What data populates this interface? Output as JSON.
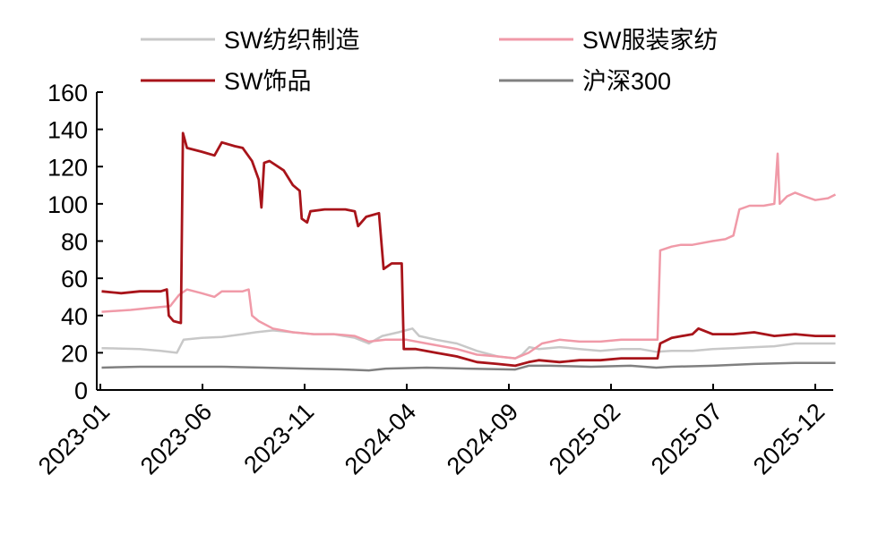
{
  "chart_data": {
    "type": "line",
    "title": "",
    "xlabel": "",
    "ylabel": "",
    "ylim": [
      0,
      160
    ],
    "yticks": [
      0,
      20,
      40,
      60,
      80,
      100,
      120,
      140,
      160
    ],
    "xlim": [
      "2023-01",
      "2025-12"
    ],
    "xticks": [
      "2023-01",
      "2023-06",
      "2023-11",
      "2024-04",
      "2024-09",
      "2025-02",
      "2025-07",
      "2025-12"
    ],
    "grid": false,
    "legend_position": "top",
    "series": [
      {
        "name": "SW纺织制造",
        "color": "#c8c8c8",
        "points": [
          [
            "2023-01-03",
            22.5
          ],
          [
            "2023-03-01",
            22
          ],
          [
            "2023-04-01",
            21
          ],
          [
            "2023-04-25",
            20
          ],
          [
            "2023-05-05",
            27
          ],
          [
            "2023-06-01",
            28
          ],
          [
            "2023-07-01",
            28.5
          ],
          [
            "2023-08-01",
            30
          ],
          [
            "2023-08-20",
            31
          ],
          [
            "2023-09-15",
            32
          ],
          [
            "2023-10-15",
            31
          ],
          [
            "2023-11-15",
            30
          ],
          [
            "2023-12-15",
            30
          ],
          [
            "2024-01-15",
            28
          ],
          [
            "2024-02-05",
            25
          ],
          [
            "2024-02-25",
            29
          ],
          [
            "2024-03-20",
            31
          ],
          [
            "2024-04-10",
            33
          ],
          [
            "2024-04-20",
            29
          ],
          [
            "2024-05-15",
            27
          ],
          [
            "2024-06-15",
            25
          ],
          [
            "2024-07-15",
            21
          ],
          [
            "2024-08-15",
            18
          ],
          [
            "2024-09-10",
            17
          ],
          [
            "2024-09-20",
            19
          ],
          [
            "2024-10-01",
            23
          ],
          [
            "2024-10-15",
            22
          ],
          [
            "2024-11-15",
            23
          ],
          [
            "2024-12-15",
            22
          ],
          [
            "2025-01-15",
            21
          ],
          [
            "2025-02-15",
            22
          ],
          [
            "2025-03-15",
            22
          ],
          [
            "2025-04-08",
            20.5
          ],
          [
            "2025-05-01",
            21
          ],
          [
            "2025-06-01",
            21
          ],
          [
            "2025-07-01",
            22
          ],
          [
            "2025-08-01",
            22.5
          ],
          [
            "2025-09-01",
            23
          ],
          [
            "2025-10-01",
            23.5
          ],
          [
            "2025-11-01",
            25
          ],
          [
            "2025-12-01",
            25
          ],
          [
            "2025-12-31",
            25
          ]
        ]
      },
      {
        "name": "SW服装家纺",
        "color": "#f09aa8",
        "points": [
          [
            "2023-01-03",
            42
          ],
          [
            "2023-02-15",
            43
          ],
          [
            "2023-03-15",
            44
          ],
          [
            "2023-04-15",
            45
          ],
          [
            "2023-04-28",
            51
          ],
          [
            "2023-05-10",
            54
          ],
          [
            "2023-06-01",
            52
          ],
          [
            "2023-06-20",
            50
          ],
          [
            "2023-07-01",
            53
          ],
          [
            "2023-08-01",
            53
          ],
          [
            "2023-08-10",
            54
          ],
          [
            "2023-08-15",
            40
          ],
          [
            "2023-08-25",
            37
          ],
          [
            "2023-09-15",
            33
          ],
          [
            "2023-10-15",
            31
          ],
          [
            "2023-11-15",
            30
          ],
          [
            "2023-12-15",
            30
          ],
          [
            "2024-01-15",
            29
          ],
          [
            "2024-02-05",
            26
          ],
          [
            "2024-03-01",
            27
          ],
          [
            "2024-04-01",
            27
          ],
          [
            "2024-05-01",
            25
          ],
          [
            "2024-06-15",
            22
          ],
          [
            "2024-07-15",
            19
          ],
          [
            "2024-08-15",
            18
          ],
          [
            "2024-09-10",
            17
          ],
          [
            "2024-09-30",
            20
          ],
          [
            "2024-10-20",
            25
          ],
          [
            "2024-11-15",
            27
          ],
          [
            "2024-12-15",
            26
          ],
          [
            "2025-01-15",
            26
          ],
          [
            "2025-02-15",
            27
          ],
          [
            "2025-03-15",
            27
          ],
          [
            "2025-04-10",
            27
          ],
          [
            "2025-04-14",
            75
          ],
          [
            "2025-05-01",
            77
          ],
          [
            "2025-05-15",
            78
          ],
          [
            "2025-06-01",
            78
          ],
          [
            "2025-07-01",
            80
          ],
          [
            "2025-07-20",
            81
          ],
          [
            "2025-08-01",
            83
          ],
          [
            "2025-08-10",
            97
          ],
          [
            "2025-08-25",
            99
          ],
          [
            "2025-09-15",
            99
          ],
          [
            "2025-10-01",
            100
          ],
          [
            "2025-10-06",
            127
          ],
          [
            "2025-10-09",
            100
          ],
          [
            "2025-10-20",
            104
          ],
          [
            "2025-11-01",
            106
          ],
          [
            "2025-11-15",
            104
          ],
          [
            "2025-12-01",
            102
          ],
          [
            "2025-12-20",
            103
          ],
          [
            "2025-12-31",
            105
          ]
        ]
      },
      {
        "name": "SW饰品",
        "color": "#a8141a",
        "points": [
          [
            "2023-01-03",
            53
          ],
          [
            "2023-02-01",
            52
          ],
          [
            "2023-03-01",
            53
          ],
          [
            "2023-04-01",
            53
          ],
          [
            "2023-04-10",
            54
          ],
          [
            "2023-04-13",
            40
          ],
          [
            "2023-04-20",
            37
          ],
          [
            "2023-05-01",
            36
          ],
          [
            "2023-05-04",
            138
          ],
          [
            "2023-05-10",
            130
          ],
          [
            "2023-06-01",
            128
          ],
          [
            "2023-06-20",
            126
          ],
          [
            "2023-07-01",
            133
          ],
          [
            "2023-07-20",
            131
          ],
          [
            "2023-08-01",
            130
          ],
          [
            "2023-08-15",
            123
          ],
          [
            "2023-08-25",
            113
          ],
          [
            "2023-08-29",
            98
          ],
          [
            "2023-09-02",
            122
          ],
          [
            "2023-09-10",
            123
          ],
          [
            "2023-10-01",
            118
          ],
          [
            "2023-10-15",
            110
          ],
          [
            "2023-10-25",
            107
          ],
          [
            "2023-10-28",
            92
          ],
          [
            "2023-11-05",
            90
          ],
          [
            "2023-11-10",
            96
          ],
          [
            "2023-12-01",
            97
          ],
          [
            "2024-01-01",
            97
          ],
          [
            "2024-01-15",
            96
          ],
          [
            "2024-01-20",
            88
          ],
          [
            "2024-02-01",
            93
          ],
          [
            "2024-02-20",
            95
          ],
          [
            "2024-02-27",
            65
          ],
          [
            "2024-03-10",
            68
          ],
          [
            "2024-03-25",
            68
          ],
          [
            "2024-03-28",
            22
          ],
          [
            "2024-04-15",
            22
          ],
          [
            "2024-05-15",
            20
          ],
          [
            "2024-06-15",
            18
          ],
          [
            "2024-07-15",
            15
          ],
          [
            "2024-08-15",
            14
          ],
          [
            "2024-09-10",
            13
          ],
          [
            "2024-09-30",
            15
          ],
          [
            "2024-10-15",
            16
          ],
          [
            "2024-11-15",
            15
          ],
          [
            "2024-12-15",
            16
          ],
          [
            "2025-01-15",
            16
          ],
          [
            "2025-02-15",
            17
          ],
          [
            "2025-03-15",
            17
          ],
          [
            "2025-04-10",
            17
          ],
          [
            "2025-04-14",
            25
          ],
          [
            "2025-05-01",
            28
          ],
          [
            "2025-06-01",
            30
          ],
          [
            "2025-06-10",
            33
          ],
          [
            "2025-07-01",
            30
          ],
          [
            "2025-08-01",
            30
          ],
          [
            "2025-09-01",
            31
          ],
          [
            "2025-10-01",
            29
          ],
          [
            "2025-11-01",
            30
          ],
          [
            "2025-12-01",
            29
          ],
          [
            "2025-12-31",
            29
          ]
        ]
      },
      {
        "name": "沪深300",
        "color": "#808080",
        "points": [
          [
            "2023-01-03",
            12
          ],
          [
            "2023-03-01",
            12.5
          ],
          [
            "2023-05-01",
            12.5
          ],
          [
            "2023-07-01",
            12.5
          ],
          [
            "2023-09-01",
            12
          ],
          [
            "2023-11-01",
            11.5
          ],
          [
            "2024-01-01",
            11
          ],
          [
            "2024-02-05",
            10.5
          ],
          [
            "2024-03-01",
            11.5
          ],
          [
            "2024-05-01",
            12
          ],
          [
            "2024-07-01",
            11.5
          ],
          [
            "2024-09-10",
            11
          ],
          [
            "2024-09-30",
            13
          ],
          [
            "2024-11-01",
            13
          ],
          [
            "2025-01-01",
            12.5
          ],
          [
            "2025-03-01",
            13
          ],
          [
            "2025-04-08",
            12
          ],
          [
            "2025-05-01",
            12.5
          ],
          [
            "2025-07-01",
            13
          ],
          [
            "2025-09-01",
            14
          ],
          [
            "2025-11-01",
            14.5
          ],
          [
            "2025-12-31",
            14.5
          ]
        ]
      }
    ]
  }
}
